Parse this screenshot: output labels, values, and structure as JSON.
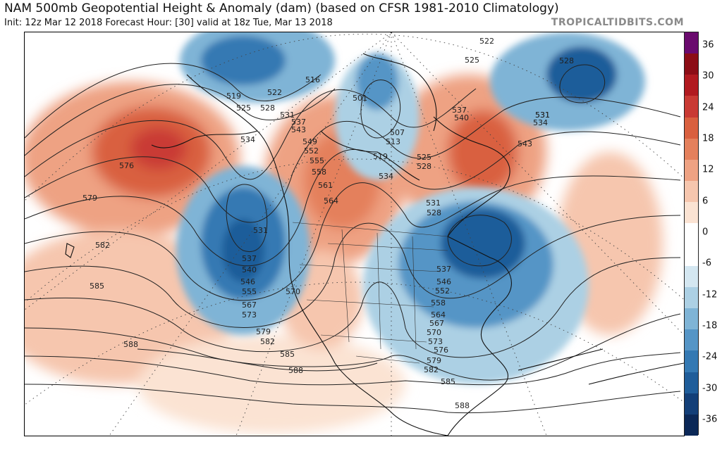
{
  "header": {
    "title": "NAM 500mb Geopotential Height & Anomaly (dam) (based on CFSR 1981-2010 Climatology)",
    "subtitle": "Init: 12z Mar 12 2018   Forecast Hour: [30]   valid at 18z Tue, Mar 13 2018",
    "brand": "TROPICALTIDBITS.COM"
  },
  "colorbar": {
    "labels": [
      "36",
      "30",
      "24",
      "18",
      "12",
      "6",
      "0",
      "-6",
      "-12",
      "-18",
      "-24",
      "-30",
      "-36"
    ],
    "colors": [
      "#6a0a6e",
      "#8c0d16",
      "#b11a20",
      "#c93a34",
      "#d9603f",
      "#e4805c",
      "#eea283",
      "#f6c6ae",
      "#fbe3d3",
      "#ffffff",
      "#ffffff",
      "#d4e7f1",
      "#acd0e4",
      "#7fb4d6",
      "#5595c6",
      "#3479b3",
      "#1f5d9a",
      "#133f78",
      "#0b2857"
    ]
  },
  "contour_labels": [
    "519",
    "522",
    "525",
    "528",
    "516",
    "531",
    "537",
    "543",
    "549",
    "552",
    "555",
    "558",
    "561",
    "564",
    "534",
    "525",
    "528",
    "531",
    "537",
    "540",
    "543",
    "531",
    "534",
    "522",
    "525",
    "528",
    "501",
    "507",
    "513",
    "519",
    "531",
    "528",
    "534",
    "576",
    "579",
    "582",
    "585",
    "588",
    "531",
    "537",
    "540",
    "546",
    "555",
    "567",
    "573",
    "570",
    "579",
    "582",
    "585",
    "588",
    "537",
    "546",
    "552",
    "558",
    "564",
    "567",
    "570",
    "573",
    "576",
    "579",
    "582",
    "585",
    "588"
  ]
}
